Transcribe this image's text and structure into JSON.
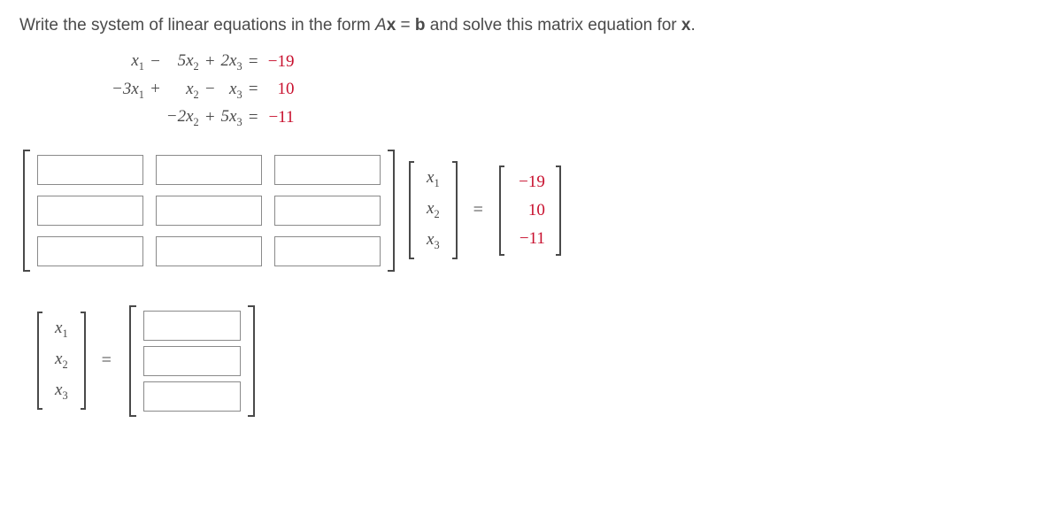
{
  "prompt": {
    "pre": "Write the system of linear equations in the form ",
    "Ax": "Ax",
    "mid": " = ",
    "b": "b",
    "post": " and solve this matrix equation for ",
    "x": "x",
    "end": "."
  },
  "system": {
    "rows": [
      {
        "c1": "x",
        "s1": "1",
        "op1": "−",
        "c2": "5x",
        "s2": "2",
        "op2": "+",
        "c3": "2x",
        "s3": "3",
        "rhs": "−19",
        "rhs_class": "neg"
      },
      {
        "c1": "−3x",
        "s1": "1",
        "op1": "+",
        "c2": "x",
        "s2": "2",
        "op2": "−",
        "c3": "x",
        "s3": "3",
        "rhs": "10",
        "rhs_class": "pos"
      },
      {
        "c1": "",
        "s1": "",
        "op1": "",
        "c2": "−2x",
        "s2": "2",
        "op2": "+",
        "c3": "5x",
        "s3": "3",
        "rhs": "−11",
        "rhs_class": "neg"
      }
    ]
  },
  "matrix_eq": {
    "A_rows": 3,
    "A_cols": 3,
    "x_labels": [
      "x₁",
      "x₂",
      "x₃"
    ],
    "b_values": [
      "−19",
      "10",
      "−11"
    ],
    "b_classes": [
      "neg",
      "pos",
      "neg"
    ]
  },
  "solution": {
    "x_labels": [
      "x₁",
      "x₂",
      "x₃"
    ],
    "rows": 3
  },
  "eq": "="
}
